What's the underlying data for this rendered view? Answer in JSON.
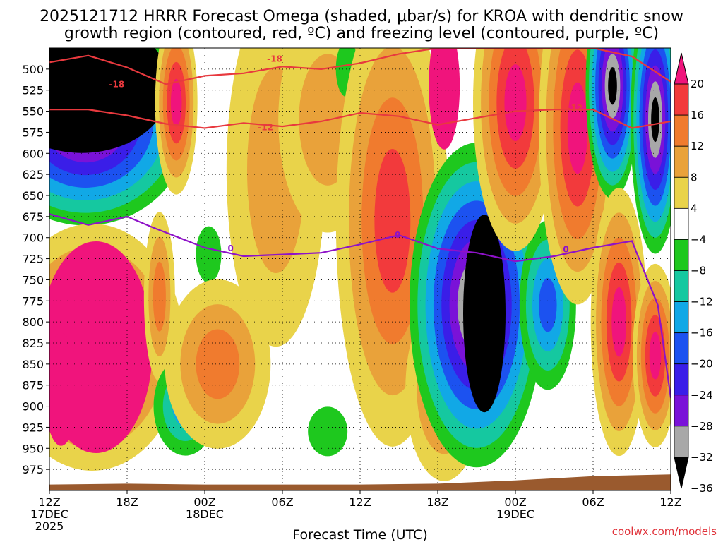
{
  "chart_data": {
    "type": "heatmap",
    "title_lines": [
      "2025121712 HRRR Forecast Omega (shaded, μbar/s) for KROA with dendritic snow",
      "growth region (contoured, red, ºC) and freezing level (contoured, purple, ºC)"
    ],
    "xlabel": "Forecast Time (UTC)",
    "ylabel": "",
    "credit": "coolwx.com/models",
    "x_ticks": [
      {
        "hour": 0,
        "lines": [
          "12Z",
          "17DEC",
          "2025"
        ]
      },
      {
        "hour": 6,
        "lines": [
          "18Z"
        ]
      },
      {
        "hour": 12,
        "lines": [
          "00Z",
          "18DEC"
        ]
      },
      {
        "hour": 18,
        "lines": [
          "06Z"
        ]
      },
      {
        "hour": 24,
        "lines": [
          "12Z"
        ]
      },
      {
        "hour": 30,
        "lines": [
          "18Z"
        ]
      },
      {
        "hour": 36,
        "lines": [
          "00Z",
          "19DEC"
        ]
      },
      {
        "hour": 42,
        "lines": [
          "06Z"
        ]
      },
      {
        "hour": 48,
        "lines": [
          "12Z"
        ]
      }
    ],
    "x_range_hours": [
      0,
      48
    ],
    "y_ticks": [
      500,
      525,
      550,
      575,
      600,
      625,
      650,
      675,
      700,
      725,
      750,
      775,
      800,
      825,
      850,
      875,
      900,
      925,
      950,
      975
    ],
    "y_range_mb": [
      475,
      1000
    ],
    "colorbar": {
      "labels": [
        "20",
        "16",
        "12",
        "8",
        "4",
        "−4",
        "−8",
        "−12",
        "−16",
        "−20",
        "−24",
        "−28",
        "−32",
        "−36"
      ],
      "colors": [
        "#f0147c",
        "#f23a3c",
        "#f07b2e",
        "#e9a23a",
        "#e9d34a",
        "#ffffff",
        "#1ec81e",
        "#15c8a0",
        "#11a8e6",
        "#1c52f0",
        "#3a1ee8",
        "#7a12d8",
        "#a8a8a8",
        "#000000"
      ]
    },
    "omega_regions": [
      {
        "label": "strong-ascent-upper-left",
        "value": -36,
        "hours": [
          0,
          6
        ],
        "mb": [
          485,
          640
        ]
      },
      {
        "label": "strong-descent-lower-left",
        "value": 20,
        "hours": [
          0.5,
          6
        ],
        "mb": [
          680,
          975
        ]
      },
      {
        "label": "moderate-descent-column",
        "value": 20,
        "hours": [
          7.5,
          10
        ],
        "mb": [
          480,
          600
        ]
      },
      {
        "label": "deep-ascent-core",
        "value": -36,
        "hours": [
          31,
          36
        ],
        "mb": [
          740,
          880
        ]
      },
      {
        "label": "strong-descent-afternoon",
        "value": 20,
        "hours": [
          34,
          42
        ],
        "mb": [
          480,
          640
        ]
      },
      {
        "label": "strong-descent-late",
        "value": 20,
        "hours": [
          42,
          47
        ],
        "mb": [
          700,
          960
        ]
      }
    ],
    "contour_labels": {
      "dgz": [
        "-18",
        "-18",
        "-12",
        "-12"
      ],
      "freezing": [
        "0",
        "0",
        "0"
      ]
    },
    "dgz_minus12_mb": [
      [
        0,
        548
      ],
      [
        3,
        548
      ],
      [
        6,
        555
      ],
      [
        9,
        565
      ],
      [
        12,
        570
      ],
      [
        15,
        564
      ],
      [
        18,
        568
      ],
      [
        21,
        562
      ],
      [
        24,
        552
      ],
      [
        27,
        556
      ],
      [
        30,
        566
      ],
      [
        33,
        558
      ],
      [
        36,
        550
      ],
      [
        39,
        548
      ],
      [
        42,
        548
      ],
      [
        45,
        570
      ],
      [
        48,
        562
      ]
    ],
    "dgz_minus18_mb": [
      [
        0,
        492
      ],
      [
        3,
        484
      ],
      [
        6,
        498
      ],
      [
        9,
        518
      ],
      [
        12,
        508
      ],
      [
        15,
        505
      ],
      [
        18,
        497
      ],
      [
        21,
        500
      ],
      [
        24,
        493
      ],
      [
        27,
        482
      ],
      [
        30,
        475
      ],
      [
        33,
        475
      ],
      [
        36,
        475
      ],
      [
        39,
        475
      ],
      [
        42,
        475
      ],
      [
        45,
        485
      ],
      [
        48,
        515
      ]
    ],
    "freezing_level_mb": [
      [
        0,
        672
      ],
      [
        3,
        685
      ],
      [
        6,
        675
      ],
      [
        8,
        688
      ],
      [
        12,
        712
      ],
      [
        15,
        722
      ],
      [
        18,
        720
      ],
      [
        21,
        718
      ],
      [
        24,
        708
      ],
      [
        27,
        697
      ],
      [
        30,
        713
      ],
      [
        33,
        718
      ],
      [
        36,
        728
      ],
      [
        39,
        722
      ],
      [
        42,
        712
      ],
      [
        45,
        704
      ],
      [
        47,
        780
      ],
      [
        48,
        890
      ]
    ],
    "terrain_mb": [
      [
        0,
        993
      ],
      [
        6,
        992
      ],
      [
        12,
        993
      ],
      [
        18,
        993
      ],
      [
        24,
        993
      ],
      [
        30,
        992
      ],
      [
        36,
        988
      ],
      [
        42,
        983
      ],
      [
        48,
        981
      ]
    ]
  }
}
